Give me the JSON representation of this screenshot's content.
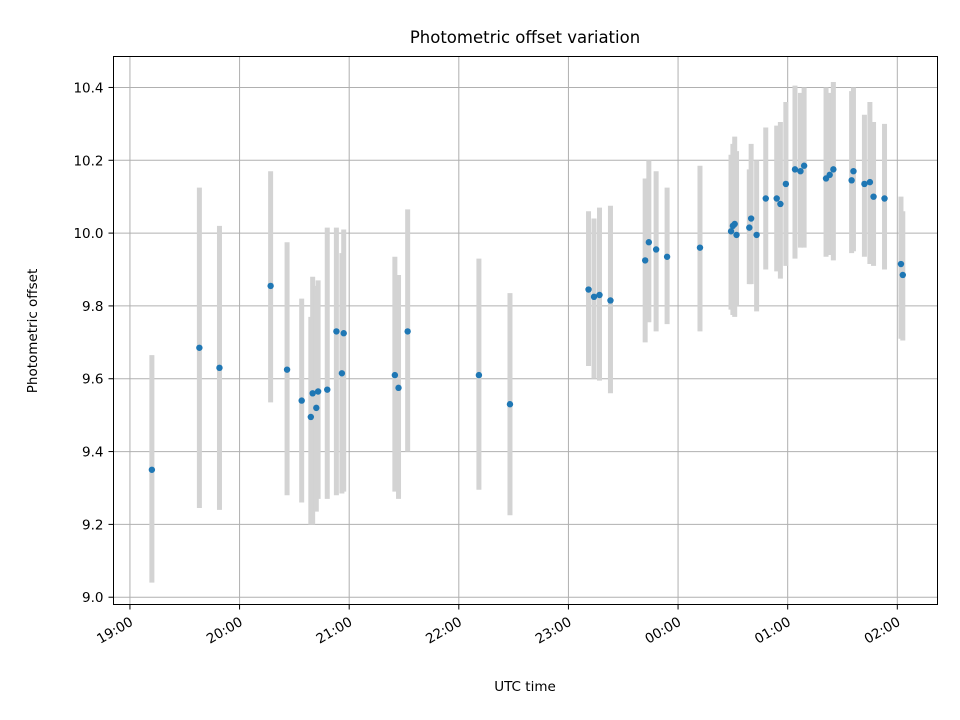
{
  "chart_data": {
    "type": "scatter",
    "title": "Photometric offset variation",
    "xlabel": "UTC time",
    "ylabel": "Photometric offset",
    "x_axis_kind": "time",
    "xlim": [
      "18:51",
      "02:22"
    ],
    "ylim": [
      8.98,
      10.485
    ],
    "grid": true,
    "x_ticks": [
      "19:00",
      "20:00",
      "21:00",
      "22:00",
      "23:00",
      "00:00",
      "01:00",
      "02:00"
    ],
    "y_ticks": [
      "9.0",
      "9.2",
      "9.4",
      "9.6",
      "9.8",
      "10.0",
      "10.2",
      "10.4"
    ],
    "colors": {
      "points": "#1f77b4",
      "error_bars": "#d3d3d3",
      "grid": "#b0b0b0"
    },
    "series": [
      {
        "x": [
          "19:12",
          "19:38",
          "19:49",
          "20:17",
          "20:26",
          "20:34",
          "20:39",
          "20:40",
          "20:42",
          "20:43",
          "20:48",
          "20:53",
          "20:56",
          "20:57",
          "21:25",
          "21:27",
          "21:32",
          "22:11",
          "22:28",
          "23:11",
          "23:14",
          "23:17",
          "23:23",
          "23:42",
          "23:44",
          "23:48",
          "23:54",
          "00:12",
          "00:29",
          "00:30",
          "00:31",
          "00:32",
          "00:39",
          "00:40",
          "00:43",
          "00:48",
          "00:54",
          "00:56",
          "00:59",
          "01:04",
          "01:07",
          "01:09",
          "01:21",
          "01:23",
          "01:25",
          "01:35",
          "01:36",
          "01:42",
          "01:45",
          "01:47",
          "01:53",
          "02:02",
          "02:03"
        ],
        "y": [
          9.35,
          9.685,
          9.63,
          9.855,
          9.625,
          9.54,
          9.495,
          9.56,
          9.52,
          9.565,
          9.57,
          9.73,
          9.615,
          9.725,
          9.61,
          9.575,
          9.73,
          9.61,
          9.53,
          9.845,
          9.825,
          9.83,
          9.815,
          9.925,
          9.975,
          9.955,
          9.935,
          9.96,
          10.005,
          10.02,
          10.025,
          9.995,
          10.015,
          10.04,
          9.995,
          10.095,
          10.095,
          10.08,
          10.135,
          10.175,
          10.17,
          10.185,
          10.15,
          10.16,
          10.175,
          10.145,
          10.17,
          10.135,
          10.14,
          10.1,
          10.095,
          9.915,
          9.885
        ],
        "err_low": [
          9.04,
          9.245,
          9.24,
          9.535,
          9.28,
          9.26,
          9.2,
          9.2,
          9.235,
          9.27,
          9.27,
          9.28,
          9.285,
          9.29,
          9.29,
          9.27,
          9.4,
          9.295,
          9.225,
          9.635,
          9.6,
          9.595,
          9.56,
          9.7,
          9.755,
          9.73,
          9.75,
          9.73,
          9.79,
          9.775,
          9.77,
          9.8,
          9.86,
          9.86,
          9.785,
          9.9,
          9.895,
          9.875,
          9.91,
          9.93,
          9.96,
          9.96,
          9.935,
          9.94,
          9.925,
          9.945,
          9.95,
          9.935,
          9.915,
          9.91,
          9.9,
          9.71,
          9.705
        ],
        "err_high": [
          9.665,
          10.125,
          10.02,
          10.17,
          9.975,
          9.82,
          9.77,
          9.88,
          9.855,
          9.87,
          10.015,
          10.015,
          9.945,
          10.01,
          9.935,
          9.885,
          10.065,
          9.93,
          9.835,
          10.06,
          10.04,
          10.07,
          10.075,
          10.15,
          10.2,
          10.17,
          10.125,
          10.185,
          10.215,
          10.245,
          10.265,
          10.225,
          10.175,
          10.245,
          10.2,
          10.29,
          10.295,
          10.305,
          10.36,
          10.405,
          10.385,
          10.4,
          10.4,
          10.385,
          10.415,
          10.39,
          10.4,
          10.325,
          10.36,
          10.305,
          10.3,
          10.1,
          10.06
        ]
      }
    ]
  }
}
